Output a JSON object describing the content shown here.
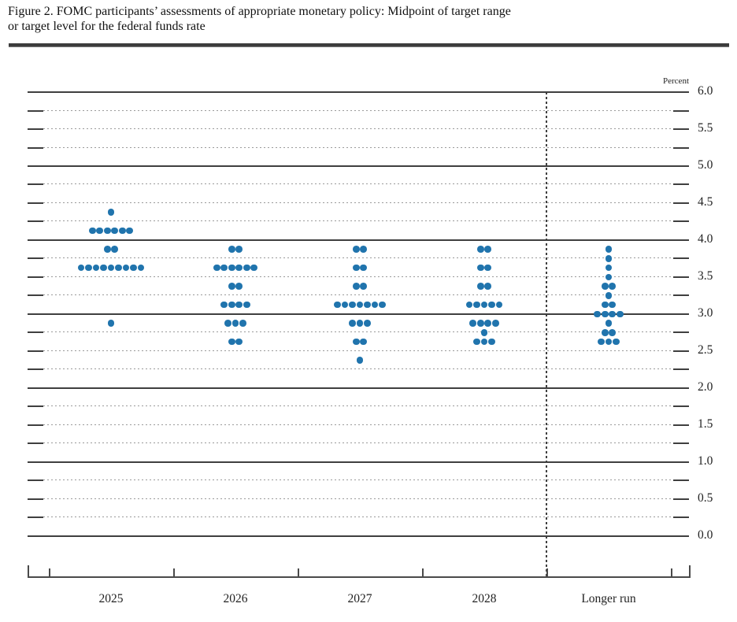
{
  "figure": {
    "title_line1": "Figure 2. FOMC participants’ assessments of appropriate monetary policy: Midpoint of target range",
    "title_line2": "or target level for the federal funds rate"
  },
  "colors": {
    "dot": "#2074AD",
    "grid_solid": "#3f3f3f",
    "grid_dotted": "#9a9a9a",
    "axis": "#4a4a4a",
    "text": "#222222"
  },
  "chart_data": {
    "type": "scatter",
    "subtype": "fomc-dot-plot",
    "title": "Figure 2. FOMC participants’ assessments of appropriate monetary policy: Midpoint of target range or target level for the federal funds rate",
    "unit_label": "Percent",
    "categories": [
      "2025",
      "2026",
      "2027",
      "2028",
      "Longer run"
    ],
    "ylim": [
      0.0,
      6.0
    ],
    "y_label_step": 0.5,
    "y_grid_step": 0.25,
    "y_axis_labels": [
      "6.0",
      "5.5",
      "5.0",
      "4.5",
      "4.0",
      "3.5",
      "3.0",
      "2.5",
      "2.0",
      "1.5",
      "1.0",
      "0.5",
      "0.0"
    ],
    "grid": "solid lines at integers, dotted lines at quarter points, short ticks both sides",
    "separator_before_category": "Longer run",
    "legend_position": "none",
    "dots": [
      {
        "category": "2025",
        "distribution": [
          {
            "rate": 4.375,
            "count": 1
          },
          {
            "rate": 4.125,
            "count": 6
          },
          {
            "rate": 3.875,
            "count": 2
          },
          {
            "rate": 3.625,
            "count": 9
          },
          {
            "rate": 2.875,
            "count": 1
          }
        ]
      },
      {
        "category": "2026",
        "distribution": [
          {
            "rate": 3.875,
            "count": 2
          },
          {
            "rate": 3.625,
            "count": 6
          },
          {
            "rate": 3.375,
            "count": 2
          },
          {
            "rate": 3.125,
            "count": 4
          },
          {
            "rate": 2.875,
            "count": 3
          },
          {
            "rate": 2.625,
            "count": 2
          }
        ]
      },
      {
        "category": "2027",
        "distribution": [
          {
            "rate": 3.875,
            "count": 2
          },
          {
            "rate": 3.625,
            "count": 2
          },
          {
            "rate": 3.375,
            "count": 2
          },
          {
            "rate": 3.125,
            "count": 7
          },
          {
            "rate": 2.875,
            "count": 3
          },
          {
            "rate": 2.625,
            "count": 2
          },
          {
            "rate": 2.375,
            "count": 1
          }
        ]
      },
      {
        "category": "2028",
        "distribution": [
          {
            "rate": 3.875,
            "count": 2
          },
          {
            "rate": 3.625,
            "count": 2
          },
          {
            "rate": 3.375,
            "count": 2
          },
          {
            "rate": 3.125,
            "count": 5
          },
          {
            "rate": 2.875,
            "count": 4
          },
          {
            "rate": 2.75,
            "count": 1
          },
          {
            "rate": 2.625,
            "count": 3
          }
        ]
      },
      {
        "category": "Longer run",
        "distribution": [
          {
            "rate": 3.875,
            "count": 1
          },
          {
            "rate": 3.75,
            "count": 1
          },
          {
            "rate": 3.625,
            "count": 1
          },
          {
            "rate": 3.5,
            "count": 1
          },
          {
            "rate": 3.375,
            "count": 2
          },
          {
            "rate": 3.25,
            "count": 1
          },
          {
            "rate": 3.125,
            "count": 2
          },
          {
            "rate": 3.0,
            "count": 4
          },
          {
            "rate": 2.875,
            "count": 1
          },
          {
            "rate": 2.75,
            "count": 2
          },
          {
            "rate": 2.625,
            "count": 3
          }
        ]
      }
    ]
  }
}
